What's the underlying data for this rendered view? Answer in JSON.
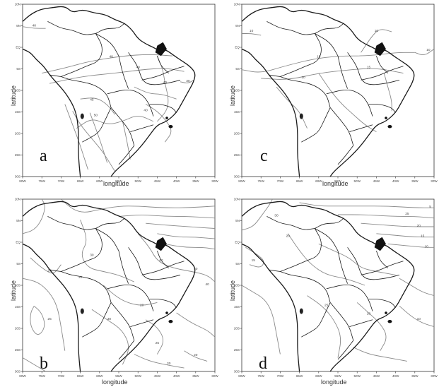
{
  "panels": [
    {
      "id": "a",
      "letter": "a",
      "xlabel": "longitude",
      "ylabel": "latitude",
      "xticks": [
        "80W",
        "75W",
        "70W",
        "65W",
        "60W",
        "55W",
        "50W",
        "45W",
        "40W",
        "35W",
        "30W"
      ],
      "yticks": [
        "10N",
        "5N",
        "EQ",
        "5S",
        "10S",
        "15S",
        "20S",
        "25S",
        "30S"
      ],
      "contour_labels": [
        "40",
        "40",
        "40",
        "45",
        "50",
        "40",
        "40",
        "30"
      ]
    },
    {
      "id": "c",
      "letter": "c",
      "xlabel": "longitude",
      "ylabel": "latitude",
      "xticks": [
        "80W",
        "75W",
        "70W",
        "65W",
        "60W",
        "55W",
        "50W",
        "45W",
        "40W",
        "35W",
        "30W"
      ],
      "yticks": [
        "10N",
        "5N",
        "EQ",
        "5S",
        "10S",
        "15S",
        "20S",
        "25S",
        "30S"
      ],
      "contour_labels": [
        "10",
        "15",
        "10",
        "10",
        "15",
        "10"
      ]
    },
    {
      "id": "b",
      "letter": "b",
      "xlabel": "longitude",
      "ylabel": "latitude",
      "xticks": [
        "80W",
        "75W",
        "70W",
        "65W",
        "60W",
        "55W",
        "50W",
        "45W",
        "40W",
        "35W",
        "30W"
      ],
      "yticks": [
        "10N",
        "5N",
        "EQ",
        "5S",
        "10S",
        "15S",
        "20S",
        "25S",
        "30S"
      ],
      "contour_labels": [
        "20",
        "30",
        "40",
        "50",
        "30",
        "25",
        "20",
        "30",
        "40",
        "25",
        "20",
        "30"
      ]
    },
    {
      "id": "d",
      "letter": "d",
      "xlabel": "longitude",
      "ylabel": "latitude",
      "xticks": [
        "80W",
        "75W",
        "70W",
        "65W",
        "60W",
        "55W",
        "50W",
        "45W",
        "40W",
        "35W",
        "30W"
      ],
      "yticks": [
        "10N",
        "5N",
        "EQ",
        "5S",
        "10S",
        "15S",
        "20S",
        "25S",
        "30S"
      ],
      "contour_labels": [
        "30",
        "25",
        "20",
        "15",
        "10",
        "5",
        "20",
        "25",
        "15",
        "20",
        "10"
      ]
    }
  ]
}
